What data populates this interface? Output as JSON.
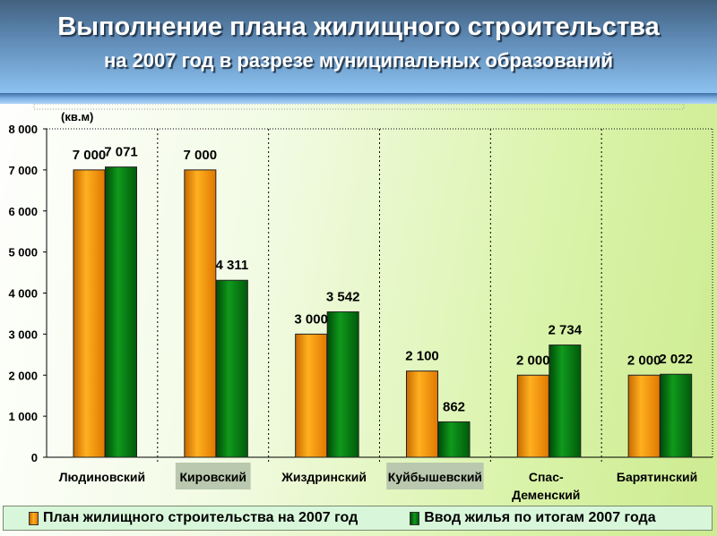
{
  "header": {
    "title": "Выполнение плана жилищного строительства",
    "subtitle": "на 2007 год в разрезе муниципальных образований"
  },
  "chart_data": {
    "type": "bar",
    "title": "Выполнение плана жилищного строительства на 2007 год в разрезе муниципальных образований",
    "ylabel": "(кв.м)",
    "xlabel": "",
    "ylim": [
      0,
      8000
    ],
    "yticks": [
      "0",
      "1 000",
      "2 000",
      "3 000",
      "4 000",
      "5 000",
      "6 000",
      "7 000",
      "8 000"
    ],
    "categories": [
      "Людиновский",
      "Кировский",
      "Жиздринский",
      "Куйбышевский",
      "Спас-Деменский",
      "Барятинский"
    ],
    "category_labels": [
      [
        "Людиновский"
      ],
      [
        "Кировский"
      ],
      [
        "Жиздринский"
      ],
      [
        "Куйбышевский"
      ],
      [
        "Спас-",
        "Деменский"
      ],
      [
        "Барятинский"
      ]
    ],
    "highlighted_categories": [
      1,
      3
    ],
    "series": [
      {
        "name": "План жилищного строительства на 2007 год",
        "color": "#ff9a00",
        "values": [
          7000,
          7000,
          3000,
          2100,
          2000,
          2000
        ],
        "labels": [
          "7 000",
          "7 000",
          "3 000",
          "2 100",
          "2 000",
          "2 000"
        ]
      },
      {
        "name": "Ввод жилья по итогам 2007 года",
        "color": "#0a7a12",
        "values": [
          7071,
          4311,
          3542,
          862,
          2734,
          2022
        ],
        "labels": [
          "7 071",
          "4 311",
          "3 542",
          "862",
          "2 734",
          "2 022"
        ]
      }
    ],
    "grid": true,
    "legend": "bottom"
  }
}
